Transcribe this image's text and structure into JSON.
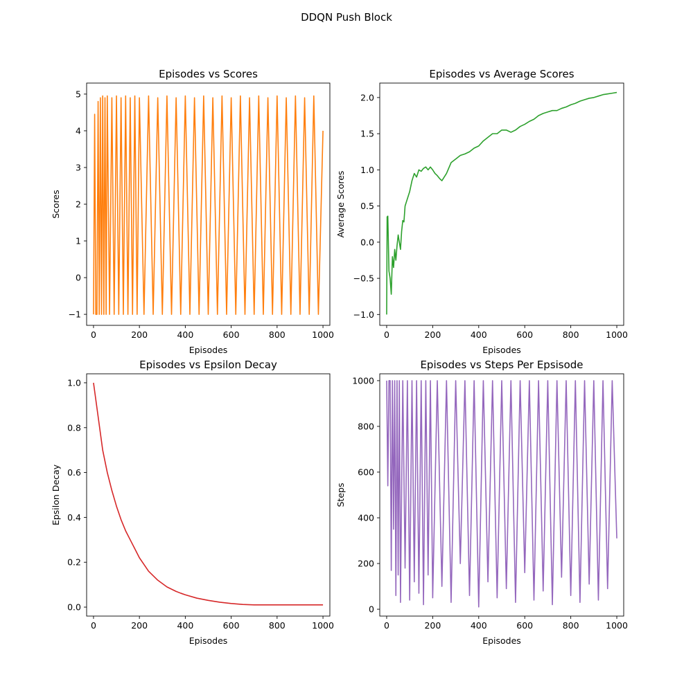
{
  "figure": {
    "title": "DDQN Push Block"
  },
  "chart_data": [
    {
      "type": "line",
      "title": "Episodes vs Scores",
      "xlabel": "Episodes",
      "ylabel": "Scores",
      "xlim": [
        -30,
        1030
      ],
      "ylim": [
        -1.3,
        5.3
      ],
      "xticks": [
        0,
        200,
        400,
        600,
        800,
        1000
      ],
      "yticks": [
        -1,
        0,
        1,
        2,
        3,
        4,
        5
      ],
      "grid": false,
      "color": "#ff7f0e",
      "series": [
        {
          "x": [
            0,
            5,
            10,
            15,
            20,
            25,
            30,
            35,
            40,
            45,
            50,
            55,
            60,
            70,
            80,
            90,
            100,
            110,
            120,
            130,
            140,
            150,
            160,
            170,
            180,
            190,
            200,
            220,
            240,
            260,
            280,
            300,
            320,
            340,
            360,
            380,
            400,
            420,
            440,
            460,
            480,
            500,
            520,
            540,
            560,
            580,
            600,
            620,
            640,
            660,
            680,
            700,
            720,
            740,
            760,
            780,
            800,
            820,
            840,
            860,
            880,
            900,
            920,
            940,
            960,
            980,
            1000
          ],
          "values": [
            -1,
            4.45,
            -1,
            -1,
            4.8,
            -1,
            4.9,
            -1,
            4.95,
            -1,
            4.9,
            -1,
            4.95,
            -1,
            4.9,
            -1,
            4.95,
            -1,
            4.9,
            -1,
            4.95,
            -1,
            4.9,
            -1,
            4.95,
            -1,
            4.9,
            -1,
            4.95,
            -1,
            4.9,
            -1,
            4.95,
            -1,
            4.9,
            -1,
            4.95,
            -1,
            4.9,
            -1,
            4.95,
            -1,
            4.9,
            -1,
            4.95,
            -1,
            4.9,
            -1,
            4.95,
            -1,
            4.9,
            -1,
            4.95,
            -1,
            4.9,
            -1,
            4.95,
            -1,
            4.9,
            -1,
            4.95,
            -1,
            4.9,
            -1,
            4.95,
            -1,
            4.0
          ]
        }
      ]
    },
    {
      "type": "line",
      "title": "Episodes vs Average Scores",
      "xlabel": "Episodes",
      "ylabel": "Average Scores",
      "xlim": [
        -30,
        1030
      ],
      "ylim": [
        -1.15,
        2.2
      ],
      "xticks": [
        0,
        200,
        400,
        600,
        800,
        1000
      ],
      "yticks": [
        -1.0,
        -0.5,
        0.0,
        0.5,
        1.0,
        1.5,
        2.0
      ],
      "grid": false,
      "color": "#2ca02c",
      "series": [
        {
          "x": [
            0,
            2,
            5,
            10,
            15,
            20,
            25,
            30,
            35,
            40,
            45,
            50,
            55,
            60,
            65,
            70,
            75,
            80,
            90,
            100,
            110,
            120,
            130,
            140,
            150,
            160,
            170,
            180,
            190,
            200,
            210,
            220,
            230,
            240,
            260,
            280,
            300,
            320,
            340,
            360,
            380,
            400,
            420,
            440,
            460,
            480,
            500,
            520,
            540,
            560,
            580,
            600,
            620,
            640,
            660,
            680,
            700,
            720,
            740,
            760,
            780,
            800,
            820,
            840,
            860,
            880,
            900,
            920,
            940,
            960,
            980,
            1000
          ],
          "values": [
            -1.0,
            0.35,
            0.36,
            -0.4,
            -0.5,
            -0.72,
            -0.2,
            -0.35,
            -0.1,
            -0.25,
            -0.05,
            0.1,
            0.0,
            -0.1,
            0.15,
            0.3,
            0.28,
            0.5,
            0.6,
            0.7,
            0.85,
            0.95,
            0.9,
            1.0,
            0.98,
            1.02,
            1.04,
            1.0,
            1.04,
            1.0,
            0.95,
            0.92,
            0.88,
            0.85,
            0.95,
            1.1,
            1.15,
            1.2,
            1.22,
            1.25,
            1.3,
            1.33,
            1.4,
            1.45,
            1.5,
            1.5,
            1.55,
            1.55,
            1.52,
            1.55,
            1.6,
            1.63,
            1.67,
            1.7,
            1.75,
            1.78,
            1.8,
            1.82,
            1.82,
            1.85,
            1.87,
            1.9,
            1.92,
            1.95,
            1.97,
            1.99,
            2.0,
            2.02,
            2.04,
            2.05,
            2.06,
            2.07
          ]
        }
      ]
    },
    {
      "type": "line",
      "title": "Episodes vs Epsilon Decay",
      "xlabel": "Episodes",
      "ylabel": "Epsilon Decay",
      "xlim": [
        -30,
        1030
      ],
      "ylim": [
        -0.04,
        1.04
      ],
      "xticks": [
        0,
        200,
        400,
        600,
        800,
        1000
      ],
      "yticks": [
        0.0,
        0.2,
        0.4,
        0.6,
        0.8,
        1.0
      ],
      "grid": false,
      "color": "#d62728",
      "series": [
        {
          "x": [
            0,
            20,
            40,
            60,
            80,
            100,
            120,
            140,
            160,
            180,
            200,
            220,
            240,
            260,
            280,
            300,
            320,
            340,
            360,
            380,
            400,
            450,
            500,
            550,
            600,
            650,
            700,
            750,
            800,
            850,
            900,
            950,
            1000
          ],
          "values": [
            1.0,
            0.85,
            0.7,
            0.6,
            0.52,
            0.45,
            0.39,
            0.34,
            0.3,
            0.26,
            0.22,
            0.19,
            0.16,
            0.14,
            0.12,
            0.105,
            0.09,
            0.08,
            0.07,
            0.062,
            0.055,
            0.04,
            0.03,
            0.022,
            0.016,
            0.012,
            0.01,
            0.01,
            0.01,
            0.01,
            0.01,
            0.01,
            0.01
          ]
        }
      ]
    },
    {
      "type": "line",
      "title": "Episodes vs Steps Per Epsisode",
      "xlabel": "Episodes",
      "ylabel": "Steps",
      "xlim": [
        -30,
        1030
      ],
      "ylim": [
        -30,
        1030
      ],
      "xticks": [
        0,
        200,
        400,
        600,
        800,
        1000
      ],
      "yticks": [
        0,
        200,
        400,
        600,
        800,
        1000
      ],
      "grid": false,
      "color": "#9467bd",
      "series": [
        {
          "x": [
            0,
            5,
            10,
            15,
            20,
            25,
            30,
            35,
            40,
            45,
            50,
            55,
            60,
            70,
            80,
            90,
            100,
            110,
            120,
            130,
            140,
            150,
            160,
            170,
            180,
            190,
            200,
            220,
            240,
            260,
            280,
            300,
            320,
            340,
            360,
            380,
            400,
            420,
            440,
            460,
            480,
            500,
            520,
            540,
            560,
            580,
            600,
            620,
            640,
            660,
            680,
            700,
            720,
            740,
            760,
            780,
            800,
            820,
            840,
            860,
            880,
            900,
            920,
            940,
            960,
            980,
            1000
          ],
          "values": [
            1000,
            540,
            1000,
            1000,
            170,
            1000,
            350,
            1000,
            60,
            1000,
            150,
            1000,
            30,
            1000,
            180,
            1000,
            40,
            1000,
            120,
            1000,
            70,
            1000,
            20,
            1000,
            150,
            1000,
            50,
            1000,
            100,
            1000,
            30,
            1000,
            200,
            1000,
            60,
            1000,
            10,
            1000,
            120,
            1000,
            50,
            1000,
            90,
            1000,
            30,
            1000,
            160,
            1000,
            40,
            1000,
            80,
            1000,
            20,
            1000,
            140,
            1000,
            60,
            1000,
            30,
            1000,
            110,
            1000,
            40,
            1000,
            90,
            1000,
            310
          ]
        }
      ]
    }
  ]
}
